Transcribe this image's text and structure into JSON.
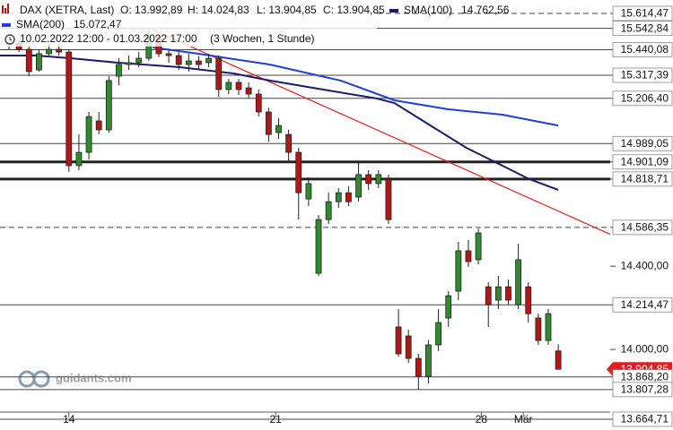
{
  "chart_data": {
    "type": "candlestick",
    "header": {
      "instrument": "DAX (XETRA, Last)",
      "ohlc": [
        "O: 13.992,89",
        "H: 14.024,83",
        "L: 13.904,85",
        "C: 13.904,85"
      ],
      "period": "10.02.2022 12:00 - 01.03.2022 17:00",
      "interval": "(3 Wochen, 1 Stunde)"
    },
    "watermark": "guidants.com",
    "x": [
      0,
      1,
      2,
      3,
      4,
      5,
      6,
      7,
      8,
      9,
      10,
      11,
      12,
      13,
      14,
      15,
      16,
      17,
      18,
      19,
      20,
      21,
      22,
      23,
      24,
      25,
      26,
      27,
      28,
      29,
      30,
      31,
      32,
      33,
      34,
      35,
      36,
      37,
      38,
      39,
      40,
      41,
      42,
      43,
      44,
      45,
      46,
      47,
      48,
      49,
      50,
      51,
      52,
      53,
      54,
      55
    ],
    "open": [
      15464,
      15472,
      15442,
      15343,
      15421,
      15442,
      15429,
      14883,
      14947,
      15098,
      15055,
      15313,
      15369,
      15378,
      15399,
      15498,
      15421,
      15412,
      15369,
      15386,
      15378,
      15399,
      15249,
      15283,
      15257,
      15227,
      15141,
      15042,
      15033,
      14947,
      14723,
      14366,
      14624,
      14710,
      14753,
      14732,
      14840,
      14797,
      14818,
      14108,
      14065,
      13957,
      13871,
      14022,
      14151,
      14280,
      14474,
      14431,
      14301,
      14237,
      14301,
      14215,
      14301,
      14151,
      14043,
      13992.89
    ],
    "high": [
      15485,
      15485,
      15455,
      15442,
      15464,
      15464,
      15442,
      15033,
      15141,
      15141,
      15313,
      15399,
      15412,
      15429,
      15537,
      15515,
      15442,
      15429,
      15421,
      15408,
      15421,
      15412,
      15300,
      15300,
      15283,
      15249,
      15162,
      15111,
      15055,
      14969,
      14827,
      14646,
      14753,
      14775,
      14784,
      14896,
      14861,
      14861,
      14840,
      14194,
      14095,
      13979,
      14043,
      14194,
      14280,
      14517,
      14525,
      14581,
      14323,
      14353,
      14336,
      14508,
      14323,
      14172,
      14194,
      14024.83
    ],
    "low": [
      15442,
      15429,
      15313,
      15335,
      15412,
      15412,
      14853,
      14861,
      14913,
      15033,
      15042,
      15270,
      15343,
      15356,
      15386,
      15404,
      15378,
      15343,
      15335,
      15343,
      15356,
      15214,
      15227,
      15223,
      15206,
      15119,
      14999,
      15012,
      14904,
      14624,
      14689,
      14353,
      14603,
      14680,
      14689,
      14710,
      14767,
      14775,
      14603,
      13966,
      13936,
      13807,
      13837,
      13992,
      14108,
      14237,
      14396,
      14409,
      14108,
      14194,
      14215,
      14194,
      14129,
      14022,
      14022,
      13904.85
    ],
    "close": [
      15472,
      15442,
      15335,
      15421,
      15442,
      15429,
      14883,
      14947,
      15119,
      15055,
      15292,
      15369,
      15378,
      15399,
      15507,
      15421,
      15412,
      15369,
      15386,
      15369,
      15399,
      15249,
      15283,
      15249,
      15227,
      15141,
      15033,
      15076,
      14947,
      14753,
      14797,
      14624,
      14710,
      14753,
      14710,
      14840,
      14797,
      14840,
      14624,
      13979,
      13957,
      13871,
      14022,
      14129,
      14258,
      14474,
      14422,
      14560,
      14215,
      14301,
      14237,
      14431,
      14172,
      14043,
      14172,
      13904.85
    ],
    "up_color": "#2e8b2e",
    "down_color": "#b01818",
    "series": [
      {
        "name": "SMA(100)",
        "value_label": "14.762,56",
        "color": "#1c1c6b",
        "x": [
          -0.9,
          2.7,
          6.3,
          10.8,
          17.1,
          22.5,
          26.1,
          31.4,
          36.8,
          38.6,
          42.2,
          45.8,
          49.4,
          52.1,
          55
        ],
        "values": [
          15412,
          15412,
          15399,
          15378,
          15356,
          15326,
          15292,
          15249,
          15206,
          15184,
          15076,
          14969,
          14883,
          14818,
          14767
        ]
      },
      {
        "name": "SMA(200)",
        "value_label": "15.072,47",
        "color": "#1f3fd6",
        "x": [
          14.4,
          18.9,
          26.1,
          33.2,
          38.6,
          44,
          49.4,
          55
        ],
        "values": [
          15451,
          15421,
          15369,
          15292,
          15197,
          15154,
          15128,
          15076
        ]
      }
    ],
    "trendline": {
      "color": "#e02020",
      "x": [
        14.4,
        60.2
      ],
      "values": [
        15537,
        14553
      ]
    },
    "levels": [
      {
        "value": 15614.47,
        "label": "15.614,47",
        "style": "dashed"
      },
      {
        "value": 15542.84,
        "label": "15.542,84",
        "style": "solid"
      },
      {
        "value": 15440.08,
        "label": "15.440,08",
        "style": "solid"
      },
      {
        "value": 15317.39,
        "label": "15.317,39",
        "style": "solid"
      },
      {
        "value": 15206.4,
        "label": "15.206,40",
        "style": "solid"
      },
      {
        "value": 14989.05,
        "label": "14.989,05",
        "style": "solid"
      },
      {
        "value": 14901.09,
        "label": "14.901,09",
        "style": "thick"
      },
      {
        "value": 14818.71,
        "label": "14.818,71",
        "style": "thick"
      },
      {
        "value": 14586.35,
        "label": "14.586,35",
        "style": "dashed"
      },
      {
        "value": 14214.47,
        "label": "14.214,47",
        "style": "solid"
      },
      {
        "value": 13868.2,
        "label": "13.868,20",
        "style": "solid"
      },
      {
        "value": 13807.28,
        "label": "13.807,28",
        "style": "solid"
      },
      {
        "value": 13664.71,
        "label": "13.664,71",
        "style": "solid"
      }
    ],
    "last_price": {
      "value": 13904.85,
      "label": "13.904,85",
      "color": "#e02020"
    },
    "xlim": [
      -0.9,
      60.2
    ],
    "ylim": [
      13613,
      15679
    ],
    "yticks": [
      {
        "value": 14400,
        "label": "14.400,00"
      },
      {
        "value": 14000,
        "label": "14.000,00"
      }
    ],
    "xticks": [
      {
        "value": 6,
        "label": "14"
      },
      {
        "value": 26.7,
        "label": "21"
      },
      {
        "value": 47.3,
        "label": "28"
      },
      {
        "value": 51.5,
        "label": "Mär"
      }
    ]
  }
}
